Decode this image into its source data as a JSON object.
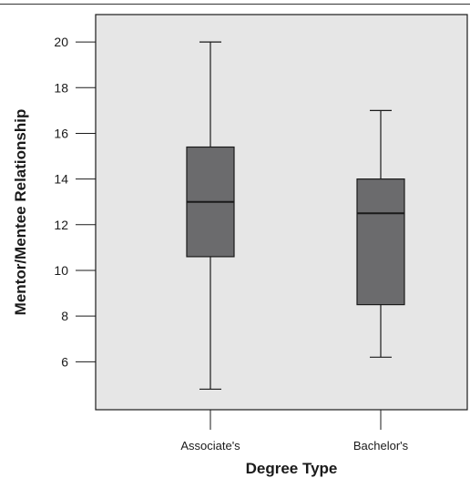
{
  "chart_data": {
    "type": "box",
    "title": "",
    "xlabel": "Degree Type",
    "ylabel": "Mentor/Mentee Relationship",
    "ylim": [
      3.9,
      21.2
    ],
    "yticks": [
      6,
      8,
      10,
      12,
      14,
      16,
      18,
      20
    ],
    "categories": [
      "Associate's",
      "Bachelor's"
    ],
    "boxes": [
      {
        "category": "Associate's",
        "min": 4.8,
        "q1": 10.6,
        "median": 13.0,
        "q3": 15.4,
        "max": 20.0
      },
      {
        "category": "Bachelor's",
        "min": 6.2,
        "q1": 8.5,
        "median": 12.5,
        "q3": 14.0,
        "max": 17.0
      }
    ],
    "grid": false,
    "colors": {
      "plot_background": "#e6e6e6",
      "box_fill": "#6b6b6d",
      "stroke": "#1a1a1a"
    }
  }
}
